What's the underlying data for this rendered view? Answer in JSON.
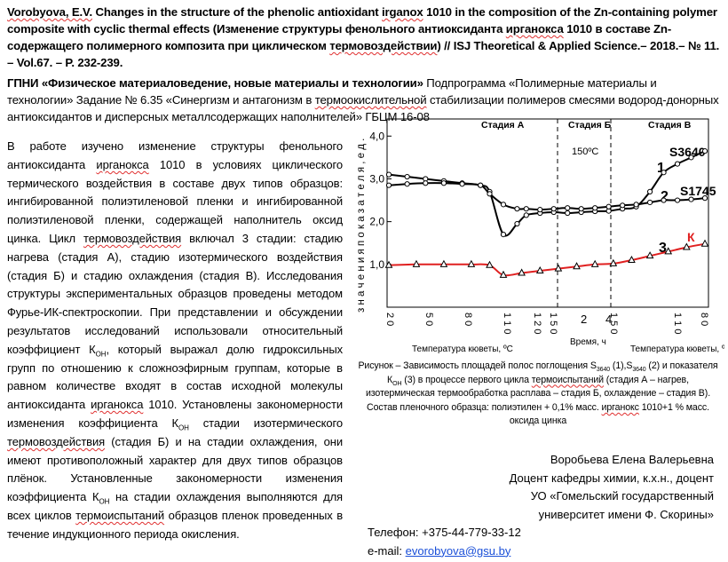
{
  "citation": {
    "p1": "Vorobyova, E.V.",
    "p2": "  Changes in the structure of the phenolic antioxidant ",
    "p3": "irganox",
    "p4": " 1010 in the composition of the Zn-containing polymer composite with cyclic thermal effects (Изменение структуры фенольного антиоксиданта ",
    "p5": "ирганокса",
    "p6": " 1010 в составе Zn-содержащего полимерного композита при циклическом ",
    "p7": "термовоздействии",
    "p8": ") // ISJ Theoretical & Applied Science.– 2018.– № 11. – Vol.67. – P. 232-239",
    "p9": "."
  },
  "gpni": {
    "bold": "ГПНИ «Физическое материаловедение, новые материалы и технологии»",
    "t1": " Подпрограмма «Полимерные материалы и технологии» Задание № 6.35 «Синергизм и антагонизм в ",
    "t2": "термоокислительной",
    "t3": " стабилизации полимеров смесями водород-донорных антиоксидантов и дисперсных металлсодержащих наполнителей» ГБЦМ 16-08"
  },
  "body": {
    "t1": "В работе изучено изменение структуры фенольного антиоксиданта ",
    "t2": "ирганокса",
    "t3": " 1010 в условиях циклического термического воздействия в составе двух типов образцов: ингибированной полиэтиленовой пленки и ингибированной полиэтиленовой пленки, содержащей наполнитель оксид цинка. Цикл ",
    "t4": "термовоздействия",
    "t5": " включал 3 стадии: стадию нагрева (стадия А), стадию изотермического воздействия (стадия Б) и стадию охлаждения (стадия В). Исследования структуры экспериментальных образцов проведены методом Фурье-ИК-спектроскопии. При представлении и обсуждении результатов исследований использовали относительный коэффициент К",
    "sub1": "ОН",
    "t6": ", который выражал долю гидроксильных групп по отношению к сложноэфирным группам, которые в равном количестве входят в состав исходной молекулы антиоксиданта ",
    "t7": "ирганокса",
    "t8": " 1010. Установлены закономерности изменения коэффициента К",
    "sub2": "ОН",
    "t9": " стадии изотермического ",
    "t10": "термовоздействия",
    "t11": " (стадия Б) и на стадии охлаждения, они имеют противоположный характер для двух типов образцов плёнок. Установленные закономерности изменения коэффициента К",
    "sub3": "ОН",
    "t12": " на стадии охлаждения выполняются для всех циклов ",
    "t13": "термоиспытаний",
    "t14": " образцов пленок проведенных в течение индукционного периода окисления."
  },
  "caption": {
    "c1": "Рисунок  – Зависимость площадей полос поглощения S",
    "s1": "3640",
    "c2": " (1),S",
    "s2": "3640",
    "c3": " (2) и показателя К",
    "s3": "ОН",
    "c4": " (3) в процессе первого цикла ",
    "c5": "термоиспытаний",
    "c6": " (стадия А – нагрев, изотермическая термообработка расплава – стадия Б,  охлаждение – стадия В). Состав пленочного образца: полиэтилен + 0,1% масс. ",
    "c7": "ирганокс",
    "c8": " 1010+1 % масс. оксида цинка"
  },
  "author": {
    "name": "Воробьева Елена Валерьевна",
    "position": "Доцент кафедры химии, к.х.н., доцент",
    "org1": "УО «Гомельский государственный",
    "org2": "университет имени Ф. Скорины»"
  },
  "contacts": {
    "phone": "Телефон:  +375-44-779-33-12",
    "email_label": "e-mail: ",
    "email": "evorobyova@gsu.by"
  },
  "chart_data": {
    "type": "line",
    "ylabel": "з н а ч е н и я   п о к а з а т е л я ,  е д .",
    "ylim": [
      0,
      4.4
    ],
    "yticks": [
      "1,0",
      "2,0",
      "3,0",
      "4,0"
    ],
    "xticks_a": [
      "20",
      "50",
      "80",
      "110",
      "150"
    ],
    "xticks_b": [
      "2",
      "4"
    ],
    "xticks_c": [
      "150",
      "110",
      "80"
    ],
    "xtick_a_half": "120",
    "xlabel_a": "Температура кюветы, ºС",
    "xlabel_b": "Время, ч",
    "xlabel_c": "Температура кюветы, ºС",
    "stage_a": "Стадия А",
    "stage_b": "Стадия Б",
    "stage_c": "Стадия В",
    "temp_note": "150ºС",
    "labels": {
      "n1": "1",
      "n2": "2",
      "n3": "3",
      "s1": "S3640",
      "s2": "S1745",
      "k": "К"
    },
    "series": [
      {
        "id": "1",
        "x": [
          0,
          0.4,
          0.8,
          1.2,
          1.6,
          2.0,
          2.2,
          2.5,
          2.8,
          3.0,
          3.3,
          3.6,
          3.9,
          4.2,
          4.5,
          4.8,
          5.1,
          5.4,
          5.7,
          6.0,
          6.3,
          6.6,
          6.9
        ],
        "y": [
          3.1,
          3.05,
          3.0,
          2.95,
          2.9,
          2.85,
          2.7,
          1.7,
          1.95,
          2.15,
          2.2,
          2.22,
          2.2,
          2.22,
          2.24,
          2.25,
          2.3,
          2.35,
          2.7,
          3.15,
          3.35,
          3.5,
          3.65
        ]
      },
      {
        "id": "2",
        "x": [
          0,
          0.4,
          0.8,
          1.2,
          1.6,
          2.0,
          2.2,
          2.5,
          2.8,
          3.0,
          3.3,
          3.6,
          3.9,
          4.2,
          4.5,
          4.8,
          5.1,
          5.4,
          5.7,
          6.0,
          6.3,
          6.6,
          6.9
        ],
        "y": [
          2.85,
          2.88,
          2.9,
          2.9,
          2.88,
          2.85,
          2.65,
          2.4,
          2.3,
          2.3,
          2.28,
          2.3,
          2.32,
          2.3,
          2.32,
          2.35,
          2.38,
          2.4,
          2.45,
          2.5,
          2.5,
          2.52,
          2.55
        ]
      },
      {
        "id": "3",
        "x": [
          0,
          0.6,
          1.2,
          1.8,
          2.2,
          2.5,
          2.9,
          3.3,
          3.7,
          4.1,
          4.5,
          4.9,
          5.3,
          5.7,
          6.1,
          6.5,
          6.9
        ],
        "y": [
          0.98,
          1.0,
          1.0,
          1.0,
          0.98,
          0.75,
          0.8,
          0.85,
          0.9,
          0.95,
          1.0,
          1.02,
          1.1,
          1.2,
          1.3,
          1.4,
          1.48
        ]
      }
    ]
  }
}
